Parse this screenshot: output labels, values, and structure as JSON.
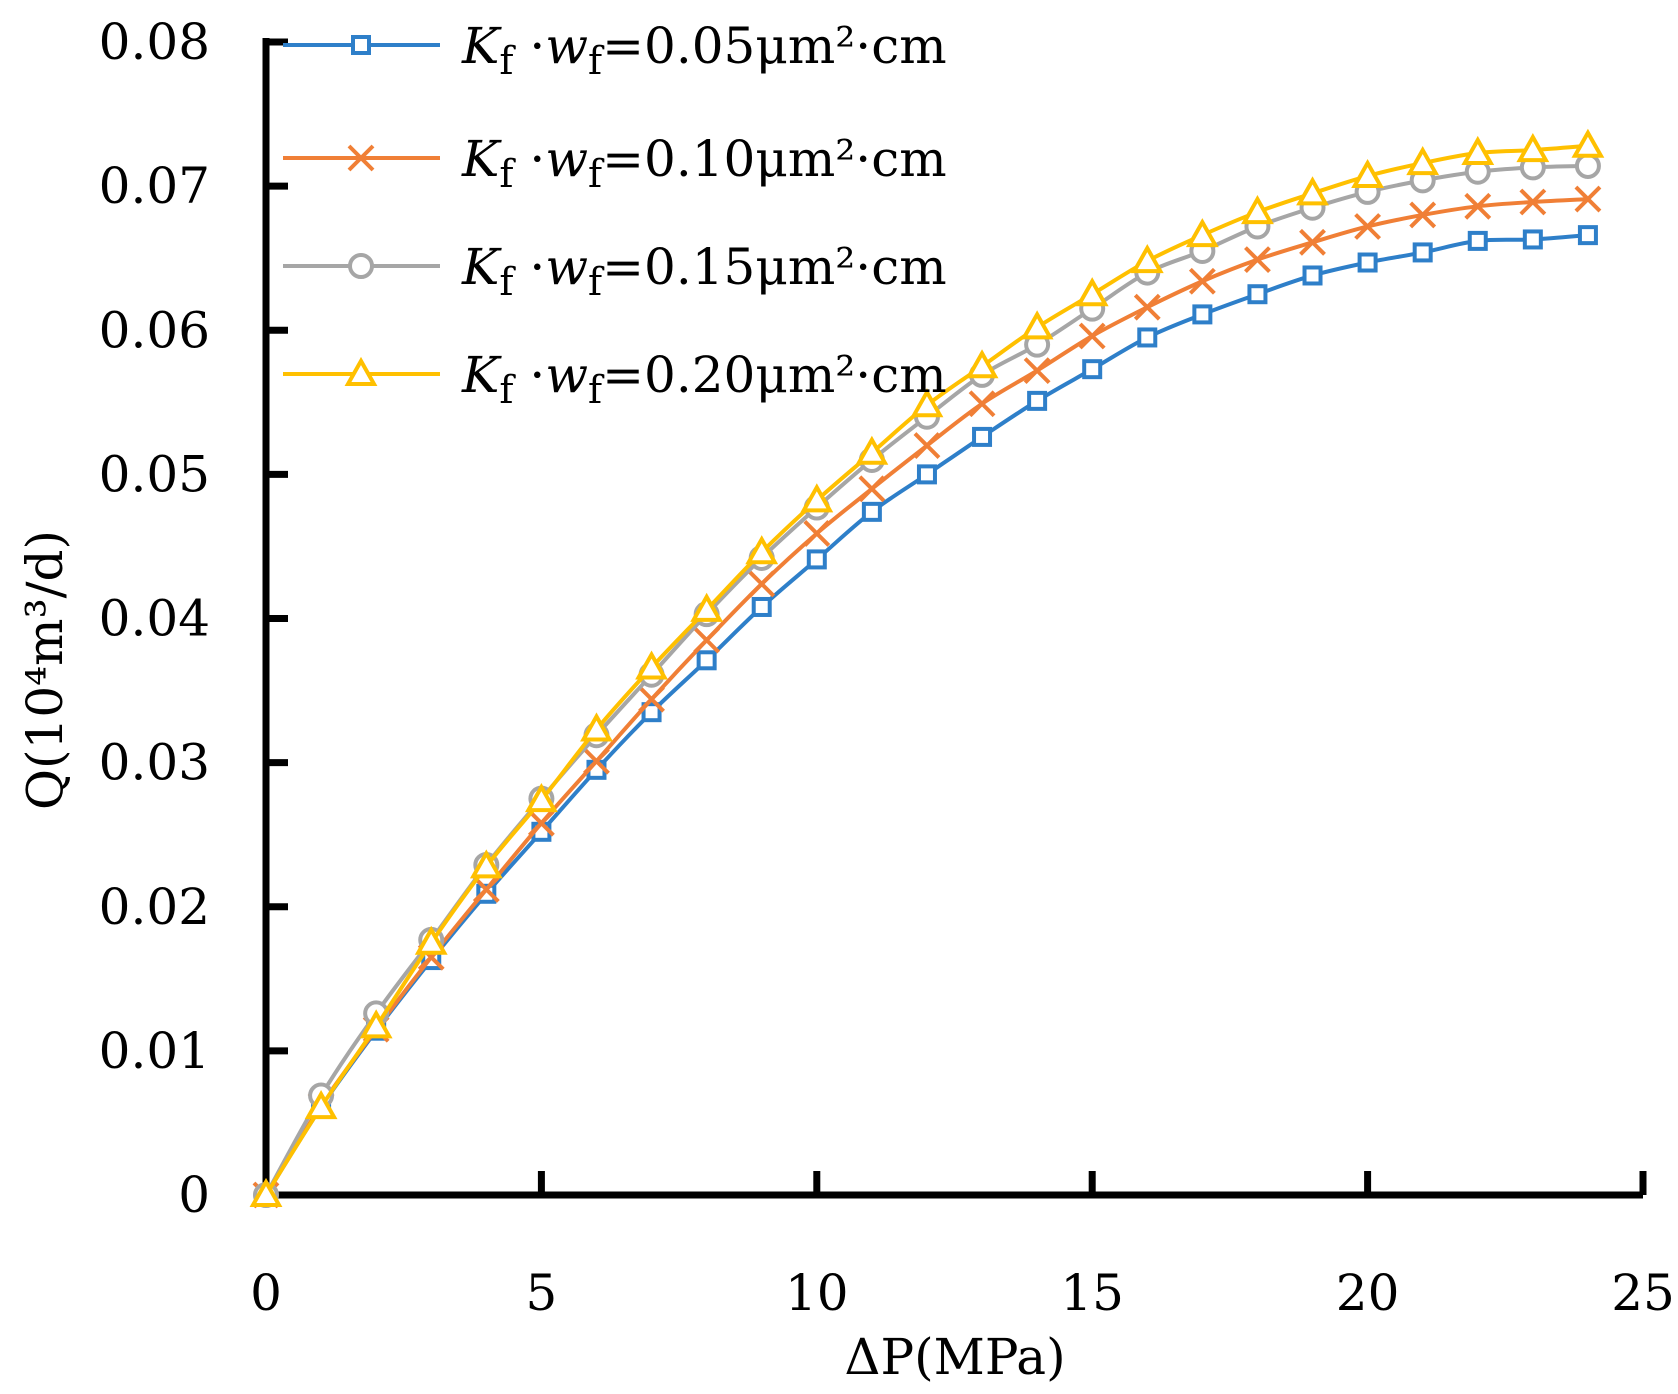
{
  "chart_data": {
    "type": "line",
    "title": "",
    "xlabel": "ΔP(MPa)",
    "ylabel": "Q(10⁴m³/d)",
    "xlim": [
      0,
      25
    ],
    "ylim": [
      0,
      0.08
    ],
    "x_ticks": [
      "0",
      "5",
      "10",
      "15",
      "20",
      "25"
    ],
    "y_ticks": [
      "0",
      "0.01",
      "0.02",
      "0.03",
      "0.04",
      "0.05",
      "0.06",
      "0.07",
      "0.08"
    ],
    "grid": false,
    "legend_position": "top-left",
    "x": [
      0,
      1,
      2,
      3,
      4,
      5,
      6,
      7,
      8,
      9,
      10,
      11,
      12,
      13,
      14,
      15,
      16,
      17,
      18,
      19,
      20,
      21,
      22,
      23,
      24
    ],
    "series": [
      {
        "name": "Kf·wf=0.05μm²·cm",
        "legend": {
          "k": "K",
          "k_sub": "f",
          "dot": " ·",
          "w": "w",
          "w_sub": "f",
          "value": "=0.05μm²·cm"
        },
        "color": "#2e7fc9",
        "marker": "square",
        "values": [
          0,
          0.0061,
          0.0114,
          0.0163,
          0.0209,
          0.0252,
          0.0295,
          0.0335,
          0.0371,
          0.0408,
          0.0441,
          0.0474,
          0.05,
          0.0526,
          0.0551,
          0.0573,
          0.0595,
          0.0611,
          0.0625,
          0.0638,
          0.0647,
          0.0654,
          0.0662,
          0.0663,
          0.0666
        ]
      },
      {
        "name": "Kf·wf=0.10μm²·cm",
        "legend": {
          "k": "K",
          "k_sub": "f",
          "dot": " ·",
          "w": "w",
          "w_sub": "f",
          "value": "=0.10μm²·cm"
        },
        "color": "#f07f36",
        "marker": "x",
        "values": [
          0,
          0.0062,
          0.0115,
          0.0165,
          0.0212,
          0.0258,
          0.0301,
          0.0344,
          0.0385,
          0.0424,
          0.0459,
          0.049,
          0.052,
          0.0549,
          0.0572,
          0.0596,
          0.0616,
          0.0634,
          0.0649,
          0.0661,
          0.0672,
          0.068,
          0.0686,
          0.0689,
          0.0691
        ]
      },
      {
        "name": "Kf·wf=0.15μm²·cm",
        "legend": {
          "k": "K",
          "k_sub": "f",
          "dot": " ·",
          "w": "w",
          "w_sub": "f",
          "value": "=0.15μm²·cm"
        },
        "color": "#a6a6a6",
        "marker": "circle",
        "values": [
          0,
          0.0069,
          0.0126,
          0.0177,
          0.0229,
          0.0275,
          0.0319,
          0.0361,
          0.0403,
          0.0442,
          0.0477,
          0.051,
          0.054,
          0.0569,
          0.059,
          0.0615,
          0.064,
          0.0655,
          0.0672,
          0.0685,
          0.0696,
          0.0704,
          0.071,
          0.0713,
          0.0714
        ]
      },
      {
        "name": "Kf·wf=0.20μm²·cm",
        "legend": {
          "k": "K",
          "k_sub": "f",
          "dot": " ·",
          "w": "w",
          "w_sub": "f",
          "value": "=0.20μm²·cm"
        },
        "color": "#ffc000",
        "marker": "triangle",
        "values": [
          0,
          0.0061,
          0.0117,
          0.0175,
          0.0228,
          0.0274,
          0.0323,
          0.0366,
          0.0406,
          0.0446,
          0.0482,
          0.0515,
          0.0548,
          0.0575,
          0.0602,
          0.0625,
          0.0648,
          0.0666,
          0.0682,
          0.0695,
          0.0707,
          0.0716,
          0.0723,
          0.0725,
          0.0728
        ]
      }
    ]
  }
}
